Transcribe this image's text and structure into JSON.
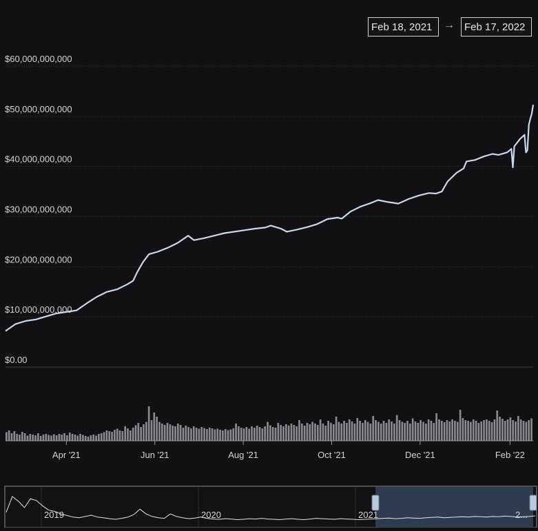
{
  "range": {
    "start": "Feb 18, 2021",
    "arrow": "→",
    "end": "Feb 17, 2022"
  },
  "colors": {
    "background": "#111113",
    "line": "#c9d9ee",
    "grid": "#3a3a3f",
    "volume": "#8a8a90",
    "navigator_fill": "#3a4a62",
    "navigator_handle": "#b9c9de"
  },
  "chart_data": {
    "type": "line",
    "ylim": [
      0,
      60000000000
    ],
    "y_ticks": [
      {
        "value": 0,
        "label": "$0.00"
      },
      {
        "value": 10000000000,
        "label": "$10,000,000,000"
      },
      {
        "value": 20000000000,
        "label": "$20,000,000,000"
      },
      {
        "value": 30000000000,
        "label": "$30,000,000,000"
      },
      {
        "value": 40000000000,
        "label": "$40,000,000,000"
      },
      {
        "value": 50000000000,
        "label": "$50,000,000,000"
      },
      {
        "value": 60000000000,
        "label": "$60,000,000,000"
      }
    ],
    "x_ticks": [
      {
        "date": "2021-04-01",
        "label": "Apr '21"
      },
      {
        "date": "2021-06-01",
        "label": "Jun '21"
      },
      {
        "date": "2021-08-01",
        "label": "Aug '21"
      },
      {
        "date": "2021-10-01",
        "label": "Oct '21"
      },
      {
        "date": "2021-12-01",
        "label": "Dec '21"
      },
      {
        "date": "2022-02-01",
        "label": "Feb '22"
      }
    ],
    "xlim": [
      "2021-02-18",
      "2022-02-17"
    ],
    "series": [
      {
        "points": [
          [
            "2021-02-18",
            7200000000
          ],
          [
            "2021-02-25",
            8600000000
          ],
          [
            "2021-03-04",
            9200000000
          ],
          [
            "2021-03-11",
            9500000000
          ],
          [
            "2021-03-18",
            10100000000
          ],
          [
            "2021-03-25",
            10700000000
          ],
          [
            "2021-04-01",
            11000000000
          ],
          [
            "2021-04-08",
            11300000000
          ],
          [
            "2021-04-15",
            12700000000
          ],
          [
            "2021-04-22",
            14000000000
          ],
          [
            "2021-04-29",
            15000000000
          ],
          [
            "2021-05-06",
            15500000000
          ],
          [
            "2021-05-13",
            16500000000
          ],
          [
            "2021-05-17",
            17200000000
          ],
          [
            "2021-05-20",
            19000000000
          ],
          [
            "2021-05-24",
            21000000000
          ],
          [
            "2021-05-28",
            22500000000
          ],
          [
            "2021-06-03",
            23000000000
          ],
          [
            "2021-06-10",
            23800000000
          ],
          [
            "2021-06-17",
            24800000000
          ],
          [
            "2021-06-24",
            26200000000
          ],
          [
            "2021-06-28",
            25300000000
          ],
          [
            "2021-07-05",
            25700000000
          ],
          [
            "2021-07-12",
            26200000000
          ],
          [
            "2021-07-19",
            26700000000
          ],
          [
            "2021-07-26",
            27000000000
          ],
          [
            "2021-08-02",
            27300000000
          ],
          [
            "2021-08-09",
            27600000000
          ],
          [
            "2021-08-16",
            27800000000
          ],
          [
            "2021-08-20",
            28200000000
          ],
          [
            "2021-08-27",
            27600000000
          ],
          [
            "2021-08-31",
            27000000000
          ],
          [
            "2021-09-07",
            27400000000
          ],
          [
            "2021-09-14",
            27900000000
          ],
          [
            "2021-09-21",
            28500000000
          ],
          [
            "2021-09-28",
            29500000000
          ],
          [
            "2021-10-05",
            29800000000
          ],
          [
            "2021-10-08",
            29600000000
          ],
          [
            "2021-10-14",
            31000000000
          ],
          [
            "2021-10-21",
            32000000000
          ],
          [
            "2021-10-28",
            32700000000
          ],
          [
            "2021-11-02",
            33300000000
          ],
          [
            "2021-11-09",
            32900000000
          ],
          [
            "2021-11-16",
            32600000000
          ],
          [
            "2021-11-23",
            33500000000
          ],
          [
            "2021-11-30",
            34200000000
          ],
          [
            "2021-12-07",
            34700000000
          ],
          [
            "2021-12-12",
            34600000000
          ],
          [
            "2021-12-16",
            35000000000
          ],
          [
            "2021-12-20",
            37000000000
          ],
          [
            "2021-12-26",
            38700000000
          ],
          [
            "2021-12-31",
            39600000000
          ],
          [
            "2022-01-02",
            41000000000
          ],
          [
            "2022-01-08",
            41300000000
          ],
          [
            "2022-01-14",
            42000000000
          ],
          [
            "2022-01-20",
            42500000000
          ],
          [
            "2022-01-24",
            42300000000
          ],
          [
            "2022-01-30",
            42800000000
          ],
          [
            "2022-02-02",
            43500000000
          ],
          [
            "2022-02-03",
            39800000000
          ],
          [
            "2022-02-04",
            44000000000
          ],
          [
            "2022-02-08",
            45500000000
          ],
          [
            "2022-02-11",
            46300000000
          ],
          [
            "2022-02-12",
            42800000000
          ],
          [
            "2022-02-13",
            43200000000
          ],
          [
            "2022-02-14",
            48300000000
          ],
          [
            "2022-02-15",
            49500000000
          ],
          [
            "2022-02-16",
            50500000000
          ],
          [
            "2022-02-17",
            52300000000
          ]
        ]
      }
    ],
    "volume_levels": [
      0.25,
      0.3,
      0.22,
      0.28,
      0.2,
      0.18,
      0.26,
      0.22,
      0.15,
      0.2,
      0.18,
      0.16,
      0.22,
      0.14,
      0.18,
      0.2,
      0.17,
      0.15,
      0.19,
      0.16,
      0.2,
      0.18,
      0.22,
      0.16,
      0.24,
      0.2,
      0.18,
      0.15,
      0.2,
      0.17,
      0.14,
      0.12,
      0.16,
      0.18,
      0.15,
      0.2,
      0.22,
      0.25,
      0.3,
      0.28,
      0.26,
      0.32,
      0.35,
      0.3,
      0.28,
      0.42,
      0.36,
      0.3,
      0.38,
      0.45,
      0.52,
      0.4,
      0.48,
      0.55,
      1.0,
      0.6,
      0.82,
      0.7,
      0.55,
      0.5,
      0.46,
      0.52,
      0.48,
      0.44,
      0.42,
      0.5,
      0.46,
      0.38,
      0.44,
      0.4,
      0.36,
      0.42,
      0.38,
      0.35,
      0.4,
      0.37,
      0.34,
      0.38,
      0.36,
      0.33,
      0.35,
      0.32,
      0.3,
      0.34,
      0.31,
      0.33,
      0.36,
      0.5,
      0.42,
      0.38,
      0.36,
      0.4,
      0.35,
      0.42,
      0.38,
      0.44,
      0.4,
      0.36,
      0.42,
      0.55,
      0.45,
      0.4,
      0.38,
      0.52,
      0.46,
      0.42,
      0.48,
      0.44,
      0.5,
      0.46,
      0.42,
      0.6,
      0.5,
      0.44,
      0.52,
      0.48,
      0.55,
      0.5,
      0.46,
      0.62,
      0.5,
      0.44,
      0.58,
      0.52,
      0.48,
      0.7,
      0.55,
      0.5,
      0.58,
      0.52,
      0.62,
      0.56,
      0.5,
      0.66,
      0.58,
      0.52,
      0.6,
      0.55,
      0.5,
      0.72,
      0.6,
      0.55,
      0.5,
      0.58,
      0.52,
      0.62,
      0.56,
      0.5,
      0.75,
      0.6,
      0.55,
      0.52,
      0.58,
      0.5,
      0.65,
      0.56,
      0.52,
      0.6,
      0.55,
      0.5,
      0.62,
      0.58,
      0.52,
      0.8,
      0.62,
      0.58,
      0.54,
      0.6,
      0.56,
      0.62,
      0.58,
      0.55,
      0.9,
      0.66,
      0.6,
      0.58,
      0.55,
      0.62,
      0.58,
      0.52,
      0.56,
      0.6,
      0.62,
      0.58,
      0.54,
      0.62,
      0.88,
      0.7,
      0.64,
      0.58,
      0.62,
      0.68,
      0.6,
      0.56,
      0.72,
      0.62,
      0.58,
      0.55,
      0.6,
      0.65
    ],
    "navigator": {
      "labels": [
        "2019",
        "2020",
        "2021",
        "2..."
      ],
      "selected_range": [
        "2021-02-18",
        "2022-02-17"
      ],
      "levels": [
        0.35,
        0.85,
        0.7,
        0.5,
        0.78,
        0.72,
        0.55,
        0.42,
        0.38,
        0.3,
        0.25,
        0.2,
        0.18,
        0.22,
        0.26,
        0.2,
        0.18,
        0.15,
        0.13,
        0.16,
        0.2,
        0.28,
        0.45,
        0.3,
        0.22,
        0.18,
        0.16,
        0.3,
        0.22,
        0.18,
        0.15,
        0.17,
        0.2,
        0.16,
        0.14,
        0.13,
        0.15,
        0.14,
        0.12,
        0.13,
        0.15,
        0.14,
        0.16,
        0.14,
        0.13,
        0.12,
        0.14,
        0.15,
        0.13,
        0.12,
        0.14,
        0.16,
        0.15,
        0.14,
        0.13,
        0.15,
        0.14,
        0.13,
        0.12,
        0.13,
        0.14,
        0.15,
        0.16,
        0.17,
        0.15,
        0.16,
        0.18,
        0.17,
        0.16,
        0.18,
        0.19,
        0.2,
        0.18,
        0.19,
        0.2,
        0.21,
        0.2,
        0.22,
        0.21,
        0.2,
        0.22,
        0.21,
        0.23,
        0.22,
        0.2,
        0.21,
        0.22,
        0.24
      ]
    }
  }
}
